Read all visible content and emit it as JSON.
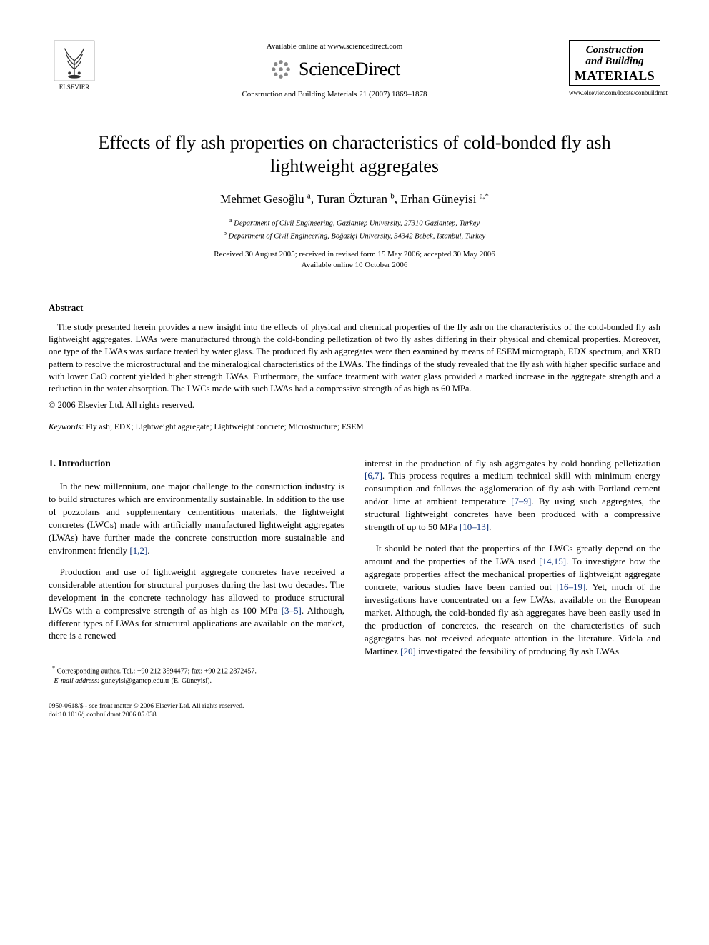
{
  "header": {
    "available_online": "Available online at www.sciencedirect.com",
    "sciencedirect": "ScienceDirect",
    "citation": "Construction and Building Materials 21 (2007) 1869–1878",
    "publisher_name": "ELSEVIER",
    "journal_logo": {
      "line1": "Construction",
      "line2": "and Building",
      "line3": "MATERIALS"
    },
    "journal_url": "www.elsevier.com/locate/conbuildmat"
  },
  "title": "Effects of fly ash properties on characteristics of cold-bonded fly ash lightweight aggregates",
  "authors_html": "Mehmet Gesoğlu <sup>a</sup>, Turan Özturan <sup>b</sup>, Erhan Güneyisi <sup>a,*</sup>",
  "affiliations": {
    "a": "Department of Civil Engineering, Gaziantep University, 27310 Gaziantep, Turkey",
    "b": "Department of Civil Engineering, Boğaziçi University, 34342 Bebek, Istanbul, Turkey"
  },
  "dates": {
    "received": "Received 30 August 2005; received in revised form 15 May 2006; accepted 30 May 2006",
    "online": "Available online 10 October 2006"
  },
  "abstract_heading": "Abstract",
  "abstract_text": "The study presented herein provides a new insight into the effects of physical and chemical properties of the fly ash on the characteristics of the cold-bonded fly ash lightweight aggregates. LWAs were manufactured through the cold-bonding pelletization of two fly ashes differing in their physical and chemical properties. Moreover, one type of the LWAs was surface treated by water glass. The produced fly ash aggregates were then examined by means of ESEM micrograph, EDX spectrum, and XRD pattern to resolve the microstructural and the mineralogical characteristics of the LWAs. The findings of the study revealed that the fly ash with higher specific surface and with lower CaO content yielded higher strength LWAs. Furthermore, the surface treatment with water glass provided a marked increase in the aggregate strength and a reduction in the water absorption. The LWCs made with such LWAs had a compressive strength of as high as 60 MPa.",
  "copyright_line": "© 2006 Elsevier Ltd. All rights reserved.",
  "keywords_label": "Keywords:",
  "keywords_text": " Fly ash; EDX; Lightweight aggregate; Lightweight concrete; Microstructure; ESEM",
  "section_heading": "1. Introduction",
  "col_left": {
    "p1a": "In the new millennium, one major challenge to the construction industry is to build structures which are environmentally sustainable. In addition to the use of pozzolans and supplementary cementitious materials, the lightweight concretes (LWCs) made with artificially manufactured lightweight aggregates (LWAs) have further made the concrete construction more sustainable and environment friendly ",
    "ref1": "[1,2]",
    "p1b": ".",
    "p2a": "Production and use of lightweight aggregate concretes have received a considerable attention for structural purposes during the last two decades. The development in the concrete technology has allowed to produce structural LWCs with a compressive strength of as high as 100 MPa ",
    "ref2": "[3–5]",
    "p2b": ". Although, different types of LWAs for structural applications are available on the market, there is a renewed"
  },
  "col_right": {
    "p1a": "interest in the production of fly ash aggregates by cold bonding pelletization ",
    "ref1": "[6,7]",
    "p1b": ". This process requires a medium technical skill with minimum energy consumption and follows the agglomeration of fly ash with Portland cement and/or lime at ambient temperature ",
    "ref2": "[7–9]",
    "p1c": ". By using such aggregates, the structural lightweight concretes have been produced with a compressive strength of up to 50 MPa ",
    "ref3": "[10–13]",
    "p1d": ".",
    "p2a": "It should be noted that the properties of the LWCs greatly depend on the amount and the properties of the LWA used ",
    "ref4": "[14,15]",
    "p2b": ". To investigate how the aggregate properties affect the mechanical properties of lightweight aggregate concrete, various studies have been carried out ",
    "ref5": "[16–19]",
    "p2c": ". Yet, much of the investigations have concentrated on a few LWAs, available on the European market. Although, the cold-bonded fly ash aggregates have been easily used in the production of concretes, the research on the characteristics of such aggregates has not received adequate attention in the literature. Videla and Martinez ",
    "ref6": "[20]",
    "p2d": " investigated the feasibility of producing fly ash LWAs"
  },
  "footnote": {
    "corr": "Corresponding author. Tel.: +90 212 3594477; fax: +90 212 2872457.",
    "email_label": "E-mail address:",
    "email": "guneyisi@gantep.edu.tr",
    "email_who": " (E. Güneyisi)."
  },
  "bottom": {
    "line1": "0950-0618/$ - see front matter © 2006 Elsevier Ltd. All rights reserved.",
    "line2": "doi:10.1016/j.conbuildmat.2006.05.038"
  },
  "colors": {
    "link": "#0a2f7a",
    "text": "#000000",
    "bg": "#ffffff"
  }
}
